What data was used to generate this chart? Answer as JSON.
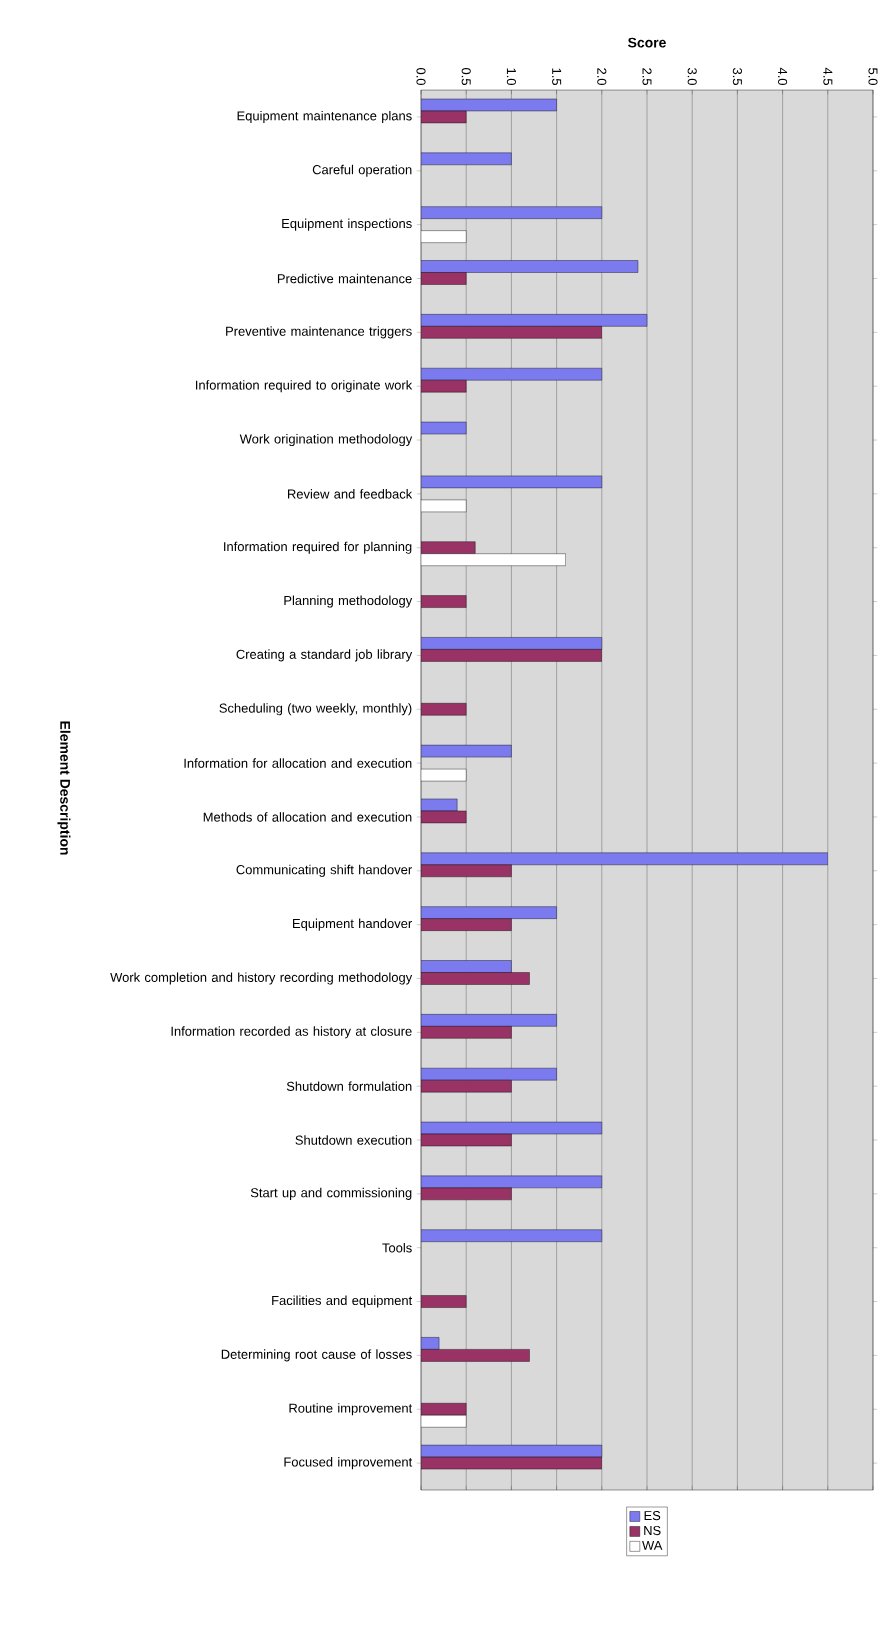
{
  "chart_data": {
    "type": "bar",
    "orientation": "horizontal",
    "xlabel": "Score",
    "ylabel": "Element Description",
    "categories": [
      "Equipment maintenance plans",
      "Careful operation",
      "Equipment inspections",
      "Predictive maintenance",
      "Preventive maintenance triggers",
      "Information required to originate work",
      "Work origination methodology",
      "Review and feedback",
      "Information required for planning",
      "Planning methodology",
      "Creating a standard job library",
      "Scheduling (two weekly, monthly)",
      "Information for allocation and execution",
      "Methods of allocation and execution",
      "Communicating shift handover",
      "Equipment handover",
      "Work completion and history recording methodology",
      "Information recorded as history at closure",
      "Shutdown formulation",
      "Shutdown execution",
      "Start up and commissioning",
      "Tools",
      "Facilities and equipment",
      "Determining root cause of losses",
      "Routine improvement",
      "Focused improvement"
    ],
    "series": [
      {
        "name": "ES",
        "color": "#7b7bef",
        "values": [
          1.5,
          1.0,
          2.0,
          2.4,
          2.5,
          2.0,
          0.5,
          2.0,
          null,
          null,
          2.0,
          null,
          1.0,
          0.4,
          4.5,
          1.5,
          1.0,
          1.5,
          1.5,
          2.0,
          2.0,
          2.0,
          null,
          0.2,
          null,
          2.0
        ]
      },
      {
        "name": "NS",
        "color": "#993366",
        "values": [
          0.5,
          null,
          null,
          0.5,
          2.0,
          0.5,
          null,
          null,
          0.6,
          0.5,
          2.0,
          0.5,
          null,
          0.5,
          1.0,
          1.0,
          1.2,
          1.0,
          1.0,
          1.0,
          1.0,
          null,
          0.5,
          1.2,
          0.5,
          2.0
        ]
      },
      {
        "name": "WA",
        "color": "#ffffff",
        "values": [
          null,
          null,
          0.5,
          null,
          null,
          null,
          null,
          0.5,
          1.6,
          null,
          null,
          null,
          0.5,
          null,
          null,
          null,
          null,
          null,
          null,
          null,
          null,
          null,
          null,
          null,
          0.5,
          null
        ]
      }
    ],
    "xlim": [
      0,
      5
    ],
    "xticks": [
      {
        "value": 0,
        "label": "0.0"
      },
      {
        "value": 0.5,
        "label": "0.5"
      },
      {
        "value": 1,
        "label": "1.0"
      },
      {
        "value": 1.5,
        "label": "1.5"
      },
      {
        "value": 2,
        "label": "2.0"
      },
      {
        "value": 2.5,
        "label": "2.5"
      },
      {
        "value": 3,
        "label": "3.0"
      },
      {
        "value": 3.5,
        "label": "3.5"
      },
      {
        "value": 4,
        "label": "4.0"
      },
      {
        "value": 4.5,
        "label": "4.5"
      },
      {
        "value": 5,
        "label": "5.0"
      }
    ],
    "grid": "x",
    "legend": "bottom"
  }
}
